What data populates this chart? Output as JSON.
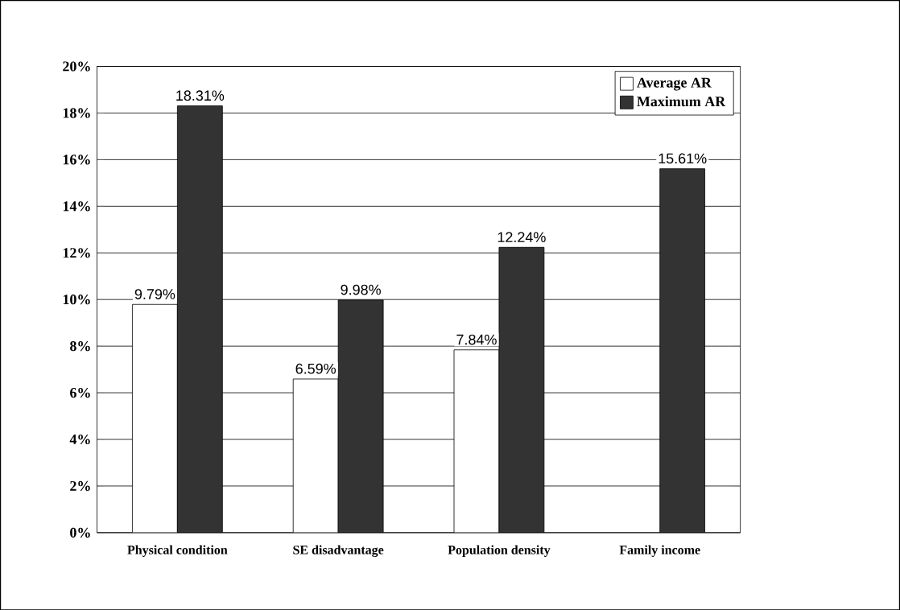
{
  "chart_data": {
    "type": "bar",
    "categories": [
      "Physical condition",
      "SE disadvantage",
      "Population density",
      "Family income"
    ],
    "series": [
      {
        "name": "Average AR",
        "color": "#ffffff",
        "values": [
          9.79,
          6.59,
          7.84,
          null
        ],
        "value_labels": [
          "9.79%",
          "6.59%",
          "7.84%",
          null
        ]
      },
      {
        "name": "Maximum AR",
        "color": "#333333",
        "values": [
          18.31,
          9.98,
          12.24,
          15.61
        ],
        "value_labels": [
          "18.31%",
          "9.98%",
          "12.24%",
          "15.61%"
        ]
      }
    ],
    "ylim": [
      0,
      20
    ],
    "yticks": [
      {
        "value": 0,
        "label": "0%"
      },
      {
        "value": 2,
        "label": "2%"
      },
      {
        "value": 4,
        "label": "4%"
      },
      {
        "value": 6,
        "label": "6%"
      },
      {
        "value": 8,
        "label": "8%"
      },
      {
        "value": 10,
        "label": "10%"
      },
      {
        "value": 12,
        "label": "12%"
      },
      {
        "value": 14,
        "label": "14%"
      },
      {
        "value": 16,
        "label": "16%"
      },
      {
        "value": 18,
        "label": "18%"
      },
      {
        "value": 20,
        "label": "20%"
      }
    ],
    "grid": "y",
    "legend": "top right"
  }
}
